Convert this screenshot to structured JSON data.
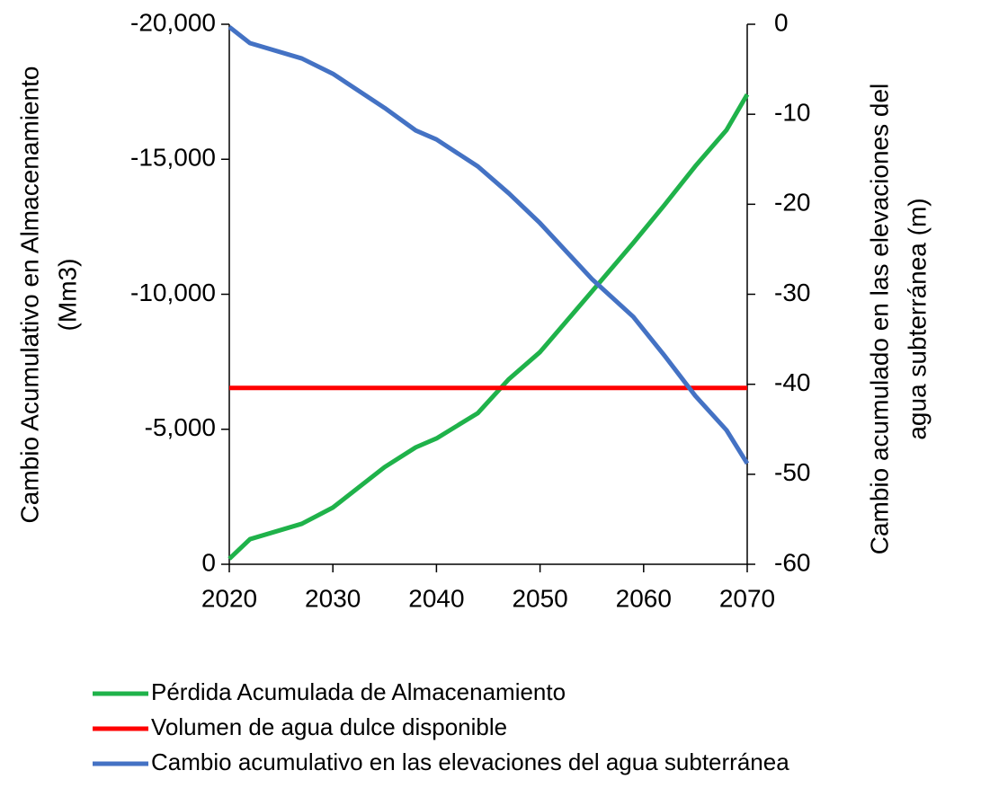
{
  "chart_data": {
    "type": "line",
    "ylabel": [
      "Cambio Acumulativo en Almacenamiento",
      "(Mm3)"
    ],
    "y2label": [
      "Cambio acumulado en las elevaciones del",
      "agua subterránea (m)"
    ],
    "x": [
      2020,
      2022,
      2027,
      2030,
      2035,
      2038,
      2040,
      2044,
      2047,
      2050,
      2055,
      2059,
      2062,
      2065,
      2068,
      2070
    ],
    "xlim": [
      2020,
      2070
    ],
    "xticks": [
      2020,
      2030,
      2040,
      2050,
      2060,
      2070
    ],
    "ylim": [
      0,
      -20000
    ],
    "yticks": [
      {
        "value": -20000,
        "label": "-20,000"
      },
      {
        "value": -15000,
        "label": "-15,000"
      },
      {
        "value": -10000,
        "label": "-10,000"
      },
      {
        "value": -5000,
        "label": "-5,000"
      },
      0
    ],
    "y2lim": [
      -60,
      0
    ],
    "y2ticks": [
      0,
      -10,
      -20,
      -30,
      -40,
      -50,
      -60
    ],
    "series": [
      {
        "name": "Pérdida Acumulada de Almacenamiento",
        "color": "#1fb24a",
        "values": [
          -200,
          -930,
          -1500,
          -2100,
          -3600,
          -4330,
          -4660,
          -5600,
          -6860,
          -7860,
          -10100,
          -11900,
          -13300,
          -14750,
          -16080,
          -17400
        ]
      },
      {
        "name": "Volumen de agua dulce disponible",
        "color": "#ff0000",
        "values": [
          -6530,
          -6530,
          -6530,
          -6530,
          -6530,
          -6530,
          -6530,
          -6530,
          -6530,
          -6530,
          -6530,
          -6530,
          -6530,
          -6530,
          -6530,
          -6530
        ]
      },
      {
        "name": "Cambio acumulativo en las elevaciones del agua subterránea",
        "color": "#4472c4",
        "axis": "y2",
        "values": [
          -0.3,
          -2.1,
          -3.8,
          -5.5,
          -9.3,
          -11.8,
          -12.8,
          -15.8,
          -18.8,
          -22.1,
          -28.3,
          -32.5,
          -36.8,
          -41.3,
          -45.1,
          -48.8
        ]
      }
    ]
  }
}
